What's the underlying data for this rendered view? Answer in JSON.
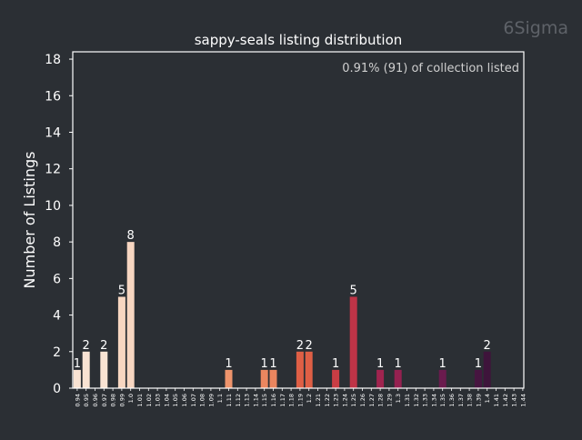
{
  "watermark": "6Sigma",
  "chart_data": {
    "type": "bar",
    "title": "sappy-seals listing distribution",
    "xlabel": "",
    "ylabel": "Number of Listings",
    "annotation": "0.91% (91) of collection listed",
    "ylim": [
      0,
      18.4
    ],
    "yticks": [
      0,
      2,
      4,
      6,
      8,
      10,
      12,
      14,
      16,
      18
    ],
    "grid": false,
    "legend": "none",
    "colors": {
      "background": "#2b2f34",
      "text": "#ffffff",
      "annotation": "#cfcfcf",
      "watermark": "#5e6268",
      "axes": "#ffffff"
    },
    "categories": [
      "0.94",
      "0.95",
      "0.96",
      "0.97",
      "0.98",
      "0.99",
      "1.0",
      "1.01",
      "1.02",
      "1.03",
      "1.04",
      "1.05",
      "1.06",
      "1.07",
      "1.08",
      "1.09",
      "1.1",
      "1.11",
      "1.12",
      "1.13",
      "1.14",
      "1.15",
      "1.16",
      "1.17",
      "1.18",
      "1.19",
      "1.2",
      "1.21",
      "1.22",
      "1.23",
      "1.24",
      "1.25",
      "1.26",
      "1.27",
      "1.28",
      "1.29",
      "1.3",
      "1.31",
      "1.32",
      "1.33",
      "1.34",
      "1.35",
      "1.36",
      "1.37",
      "1.38",
      "1.39",
      "1.4",
      "1.41",
      "1.42",
      "1.43",
      "1.44"
    ],
    "values": [
      1,
      2,
      0,
      2,
      0,
      5,
      8,
      0,
      0,
      0,
      0,
      0,
      0,
      0,
      0,
      0,
      0,
      1,
      0,
      0,
      0,
      1,
      1,
      0,
      0,
      2,
      2,
      0,
      0,
      1,
      0,
      5,
      0,
      0,
      1,
      0,
      1,
      0,
      0,
      0,
      0,
      1,
      0,
      0,
      0,
      1,
      2,
      0,
      0,
      0,
      0
    ],
    "bar_colors": [
      "#f9e3d3",
      "#f7d6c1",
      "#f5c8ae",
      "#f3bb9c",
      "#f2ae8b",
      "#f0a17b",
      "#ee946c",
      "#eb865f",
      "#e87954",
      "#e46c4b",
      "#df5f45",
      "#d95342",
      "#d24742",
      "#c93d44",
      "#bf3447",
      "#b52d4a",
      "#aa284d",
      "#a0244f",
      "#952150",
      "#8a1f51",
      "#801e51",
      "#751d50",
      "#6b1b4e",
      "#611a4b",
      "#581848",
      "#4f1744",
      "#461540",
      "#3e143b",
      "#361236",
      "#2f1031",
      "#280e2b",
      "#220c25",
      "#1d0a20",
      "#18081b",
      "#140616",
      "#100511",
      "#0d040d",
      "#0a030a",
      "#080207",
      "#060105"
    ],
    "bar_color_map": [
      0,
      0,
      0,
      0,
      0,
      1,
      1,
      0,
      0,
      0,
      0,
      0,
      0,
      0,
      0,
      0,
      0,
      6,
      0,
      0,
      0,
      7,
      7,
      0,
      0,
      10,
      10,
      0,
      0,
      13,
      0,
      14,
      0,
      0,
      17,
      0,
      18,
      0,
      0,
      0,
      0,
      22,
      0,
      0,
      0,
      26,
      27,
      0,
      0,
      0,
      0
    ]
  }
}
